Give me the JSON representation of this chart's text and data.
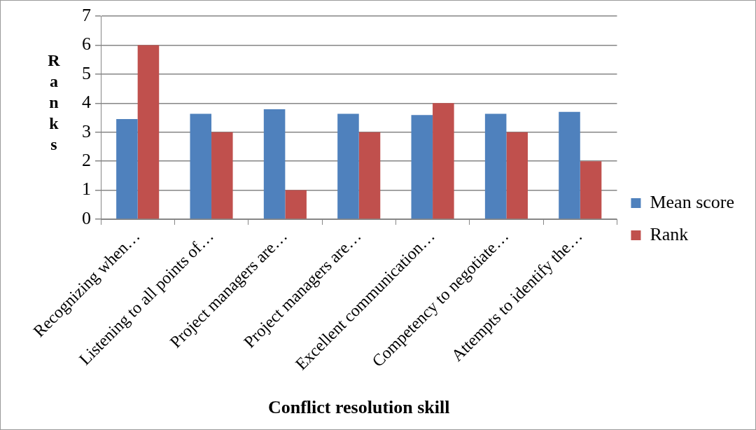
{
  "chart_data": {
    "type": "bar",
    "xlabel": "Conflict resolution skill",
    "ylabel": "Ranks",
    "categories": [
      "Recognizing when…",
      "Listening to all points of…",
      "Project managers are…",
      "Project managers are…",
      "Excellent communication…",
      "Competency to negotiate…",
      "Attempts to identify the…"
    ],
    "series": [
      {
        "name": "Mean score",
        "color": "#4f81bd",
        "values": [
          3.45,
          3.63,
          3.79,
          3.63,
          3.59,
          3.63,
          3.7
        ]
      },
      {
        "name": "Rank",
        "color": "#c0504d",
        "values": [
          6,
          3,
          1,
          3,
          4,
          3,
          2
        ]
      }
    ],
    "ylim": [
      0,
      7
    ],
    "yticks": [
      0,
      1,
      2,
      3,
      4,
      5,
      6,
      7
    ],
    "grid": "y",
    "legend": "right"
  }
}
